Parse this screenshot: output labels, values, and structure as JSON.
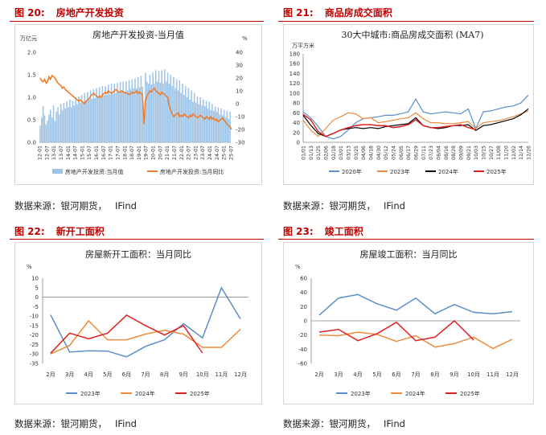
{
  "sources": {
    "left_top": [
      "数据来源：银河期货，",
      "IFind"
    ],
    "right_top": [
      "数据来源：银河期货，",
      "IFind"
    ],
    "left_bottom": [
      "数据来源：银河期货，",
      "IFind"
    ],
    "right_bottom": [
      "数据来源：银河期货，",
      "IFind"
    ]
  },
  "colors": {
    "red": "#c00000",
    "c2023": "#5b8fc9",
    "c2024": "#ed8c3c",
    "c2025": "#e02020",
    "bar": "#9dc3e6",
    "line": "#ed7d31",
    "black": "#000000"
  },
  "chart_data": [
    {
      "id": "fig20",
      "fig_num": "图 20:",
      "fig_name": "房地产开发投资",
      "type": "bar+line",
      "title": "房地产开发投资-当月值",
      "left_unit": "万亿元",
      "right_unit": "%",
      "left_ticks": [
        "0.0",
        "0.5",
        "1.0",
        "1.5",
        "2.0"
      ],
      "left_range": [
        0,
        2.0
      ],
      "right_ticks": [
        "-30",
        "-20",
        "-10",
        "0",
        "10",
        "20",
        "30",
        "40"
      ],
      "right_range": [
        -30,
        40
      ],
      "x_ticks": [
        "12-01",
        "12-07",
        "13-01",
        "13-07",
        "14-01",
        "14-07",
        "15-01",
        "15-07",
        "16-01",
        "16-07",
        "17-01",
        "17-07",
        "18-01",
        "18-07",
        "19-01",
        "19-07",
        "20-01",
        "20-07",
        "21-01",
        "21-07",
        "22-01",
        "22-07",
        "23-01",
        "23-07",
        "24-01",
        "24-07",
        "25-01",
        "25-07"
      ],
      "legend": [
        "房地产开发投资:当月值",
        "房地产开发投资:当月同比"
      ],
      "bar_values": [
        0.37,
        0.55,
        0.8,
        0.6,
        0.4,
        0.48,
        0.62,
        0.72,
        0.55,
        0.82,
        0.47,
        0.68,
        0.78,
        0.62,
        0.85,
        0.72,
        0.88,
        0.75,
        0.9,
        0.78,
        0.95,
        0.78,
        0.92,
        0.82,
        1.0,
        0.85,
        1.02,
        0.88,
        1.05,
        0.9,
        1.1,
        0.92,
        1.12,
        0.95,
        1.15,
        0.96,
        1.18,
        0.98,
        1.2,
        1.0,
        1.22,
        1.02,
        1.25,
        1.05,
        1.25,
        1.05,
        1.28,
        1.06,
        1.3,
        1.08,
        1.3,
        1.1,
        1.32,
        1.1,
        1.34,
        1.12,
        1.35,
        1.12,
        1.35,
        1.15,
        1.38,
        1.18,
        1.4,
        1.2,
        1.42,
        1.2,
        1.45,
        1.22,
        1.48,
        1.24,
        0.5,
        1.55,
        1.35,
        1.3,
        1.5,
        1.28,
        1.55,
        1.3,
        1.6,
        1.35,
        1.58,
        1.32,
        1.6,
        1.3,
        1.62,
        1.35,
        1.55,
        1.3,
        1.5,
        1.25,
        1.45,
        1.2,
        1.4,
        1.15,
        1.38,
        1.1,
        1.3,
        1.05,
        1.25,
        1.0,
        1.2,
        0.95,
        1.15,
        0.9,
        1.1,
        0.88,
        1.02,
        0.85,
        1.0,
        0.82,
        0.95,
        0.8,
        0.92,
        0.75,
        0.9,
        0.72,
        0.85,
        0.7,
        0.8,
        0.68,
        0.78,
        0.62,
        0.75,
        0.6,
        0.72,
        0.55,
        0.7,
        0.52,
        0.68
      ],
      "line_values": [
        20,
        18,
        17,
        19,
        16,
        17,
        21,
        19,
        22,
        21,
        20,
        18,
        16,
        15,
        14,
        12,
        13,
        11,
        10,
        9,
        8,
        7,
        6,
        5,
        4,
        3,
        2,
        3,
        2,
        1,
        0,
        2,
        3,
        4,
        6,
        7,
        8,
        7,
        6,
        5,
        6,
        5,
        7,
        8,
        9,
        8,
        10,
        9,
        8,
        9,
        10,
        11,
        10,
        9,
        9,
        10,
        9,
        9,
        8,
        8,
        7,
        8,
        9,
        8,
        9,
        10,
        8,
        9,
        8,
        7,
        -16,
        2,
        6,
        8,
        10,
        9,
        11,
        12,
        10,
        9,
        8,
        7,
        9,
        8,
        7,
        6,
        5,
        -2,
        -5,
        -8,
        -10,
        -9,
        -8,
        -7,
        -10,
        -9,
        -10,
        -8,
        -9,
        -10,
        -11,
        -9,
        -10,
        -8,
        -9,
        -10,
        -11,
        -10,
        -9,
        -10,
        -11,
        -12,
        -10,
        -11,
        -12,
        -10,
        -12,
        -11,
        -13,
        -12,
        -14,
        -13,
        -12,
        -11,
        -13,
        -14,
        -16,
        -17,
        -18,
        -20
      ],
      "range_text": {
        "start": "12-01",
        "end": "25-07"
      }
    },
    {
      "id": "fig21",
      "fig_num": "图 21:",
      "fig_name": "商品房成交面积",
      "type": "line",
      "title": "30大中城市:商品房成交面积 (MA7)",
      "unit": "万平方米",
      "y_ticks": [
        "0",
        "20",
        "40",
        "60",
        "80",
        "100",
        "120",
        "140",
        "160",
        "180"
      ],
      "y_range": [
        0,
        180
      ],
      "x_ticks": [
        "01/01",
        "01/13",
        "01/25",
        "02/06",
        "02/18",
        "03/01",
        "03/13",
        "03/25",
        "04/06",
        "04/18",
        "04/30",
        "05/12",
        "05/24",
        "06/05",
        "06/17",
        "06/29",
        "07/11",
        "07/23",
        "08/04",
        "08/16",
        "08/28",
        "09/09",
        "09/21",
        "10/03",
        "10/15",
        "10/27",
        "11/08",
        "11/20",
        "12/02",
        "12/14",
        "12/26"
      ],
      "series": [
        {
          "name": "2020年",
          "color": "#5b8fc9",
          "values": [
            62,
            50,
            32,
            12,
            7,
            12,
            25,
            40,
            48,
            50,
            52,
            55,
            55,
            58,
            62,
            88,
            62,
            58,
            60,
            62,
            60,
            58,
            68,
            28,
            62,
            64,
            68,
            72,
            74,
            80,
            96
          ]
        },
        {
          "name": "2023年",
          "color": "#ed8c3c",
          "values": [
            45,
            25,
            12,
            28,
            45,
            52,
            60,
            58,
            48,
            50,
            40,
            42,
            45,
            48,
            50,
            60,
            48,
            40,
            40,
            38,
            38,
            40,
            42,
            28,
            40,
            42,
            44,
            48,
            52,
            58,
            64
          ]
        },
        {
          "name": "2024年",
          "color": "#000000",
          "values": [
            55,
            35,
            18,
            12,
            18,
            25,
            28,
            30,
            28,
            30,
            28,
            32,
            34,
            36,
            38,
            50,
            34,
            30,
            28,
            30,
            34,
            34,
            36,
            24,
            34,
            36,
            40,
            44,
            48,
            56,
            68
          ]
        },
        {
          "name": "2025年",
          "color": "#e02020",
          "values": [
            57,
            46,
            22,
            12,
            18,
            25,
            30,
            34,
            36,
            36,
            34,
            34,
            30,
            32,
            36,
            46,
            34,
            30,
            30,
            32,
            34,
            36,
            30,
            26,
            null,
            null,
            null,
            null,
            null,
            null,
            null
          ]
        }
      ]
    },
    {
      "id": "fig22",
      "fig_num": "图 22:",
      "fig_name": "新开工面积",
      "type": "line",
      "title": "房屋新开工面积：当月同比",
      "unit": "%",
      "y_ticks": [
        "-35",
        "-30",
        "-25",
        "-20",
        "-15",
        "-10",
        "-5",
        "0",
        "5",
        "10"
      ],
      "y_range": [
        -35,
        10
      ],
      "x_ticks": [
        "2月",
        "3月",
        "4月",
        "5月",
        "6月",
        "7月",
        "8月",
        "9月",
        "10月",
        "11月",
        "12月"
      ],
      "series": [
        {
          "name": "2023年",
          "color": "#5b8fc9",
          "values": [
            -9.4,
            -29,
            -28.3,
            -28.5,
            -31.5,
            -26,
            -22.5,
            -14,
            -21.5,
            5,
            -11.5
          ]
        },
        {
          "name": "2024年",
          "color": "#ed8c3c",
          "values": [
            -30,
            -25.5,
            -12.5,
            -22.5,
            -22.5,
            -19.5,
            -17.5,
            -19.5,
            -26.5,
            -26.5,
            -17
          ]
        },
        {
          "name": "2025年",
          "color": "#e02020",
          "values": [
            -29.6,
            -19,
            -22,
            -19,
            -9.5,
            -15,
            -20,
            -15,
            -29.5,
            null,
            null
          ]
        }
      ]
    },
    {
      "id": "fig23",
      "fig_num": "图 23:",
      "fig_name": "竣工面积",
      "type": "line",
      "title": "房屋竣工面积：当月同比",
      "unit": "%",
      "y_ticks": [
        "-60",
        "-40",
        "-20",
        "0",
        "20",
        "40",
        "60"
      ],
      "y_range": [
        -60,
        60
      ],
      "x_ticks": [
        "2月",
        "3月",
        "4月",
        "5月",
        "6月",
        "7月",
        "8月",
        "9月",
        "10月",
        "11月",
        "12月"
      ],
      "series": [
        {
          "name": "2023年",
          "color": "#5b8fc9",
          "values": [
            8,
            32,
            37,
            24,
            15,
            32,
            10,
            23,
            12,
            10,
            13
          ]
        },
        {
          "name": "2024年",
          "color": "#ed8c3c",
          "values": [
            -20,
            -21,
            -16,
            -19,
            -29,
            -21,
            -37,
            -32,
            -23,
            -39,
            -26
          ]
        },
        {
          "name": "2025年",
          "color": "#e02020",
          "values": [
            -16,
            -12,
            -28,
            -18,
            -2,
            -28,
            -23,
            0,
            -27,
            null,
            null
          ]
        }
      ]
    }
  ]
}
